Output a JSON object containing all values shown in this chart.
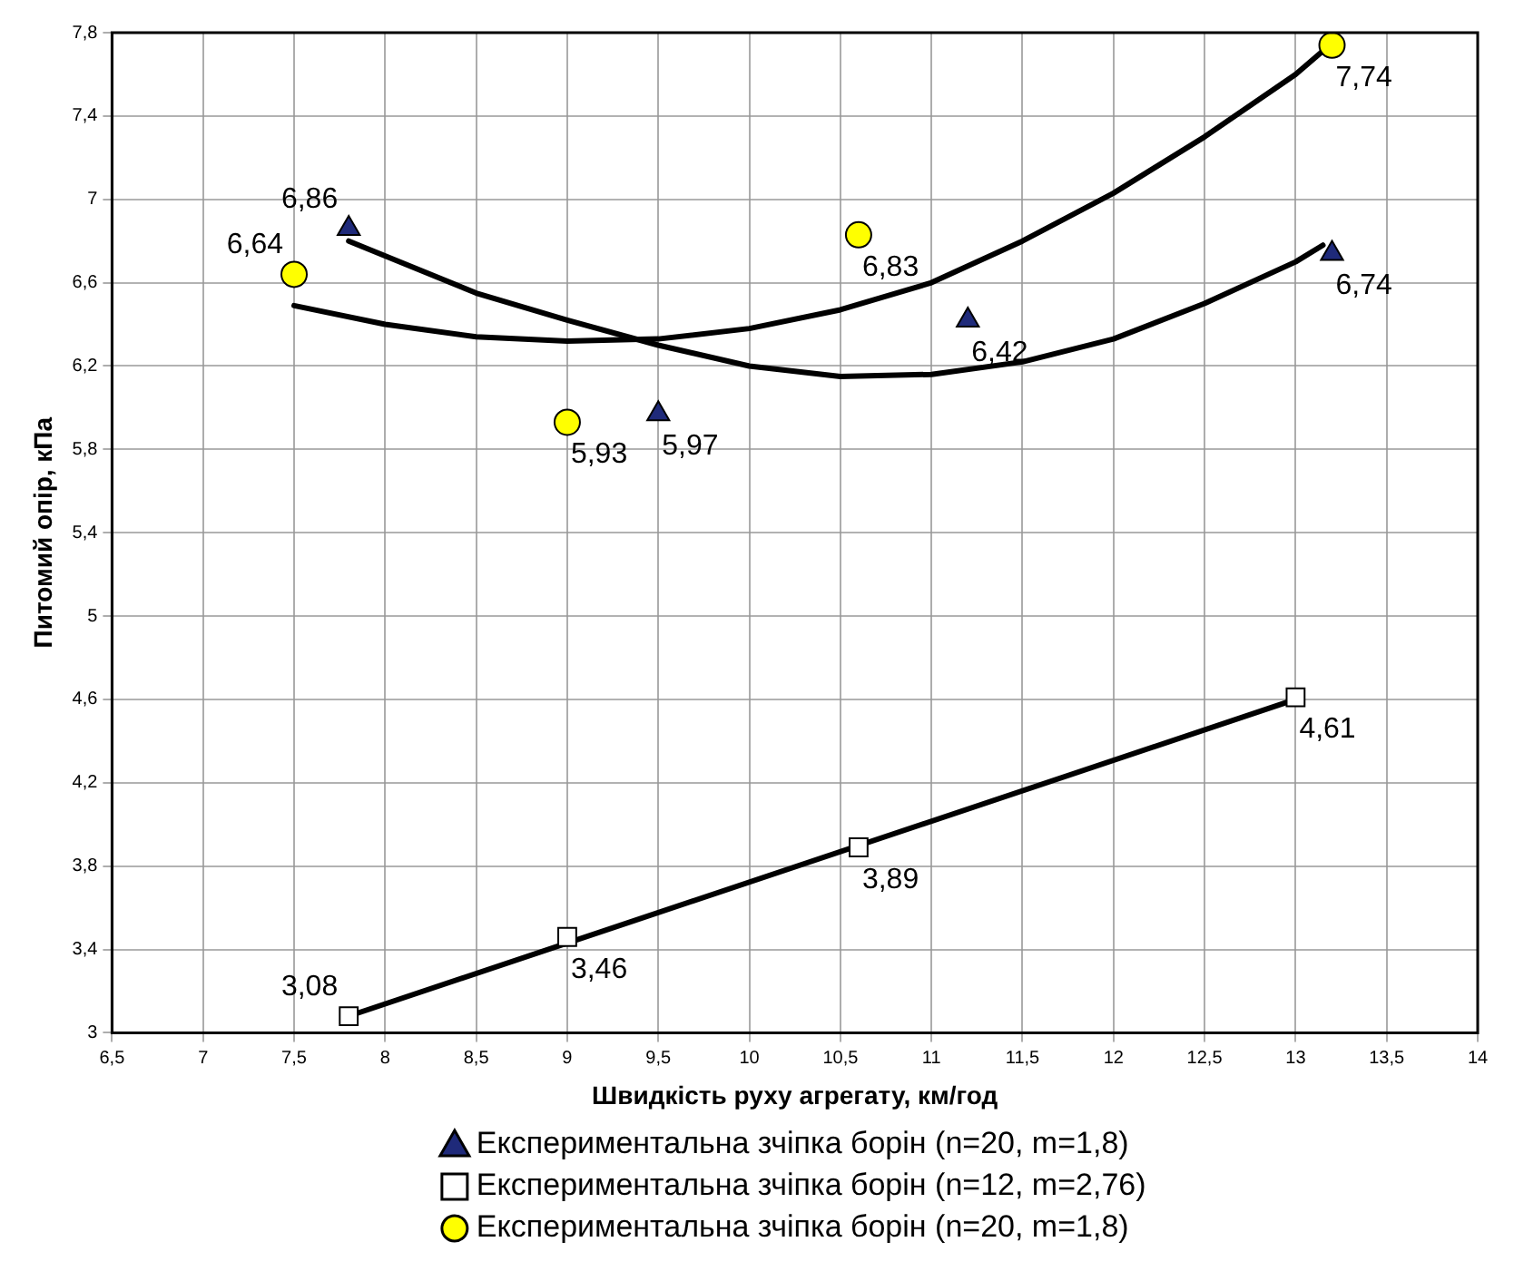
{
  "chart_data": {
    "type": "scatter",
    "xlabel": "Швидкість руху агрегату, км/год",
    "ylabel": "Питомий опір, кПа",
    "xlim": [
      6.5,
      14
    ],
    "xticks": [
      {
        "value": 6.5,
        "label": "6,5"
      },
      7,
      {
        "value": 7.5,
        "label": "7,5"
      },
      8,
      {
        "value": 8.5,
        "label": "8,5"
      },
      9,
      {
        "value": 9.5,
        "label": "9,5"
      },
      10,
      {
        "value": 10.5,
        "label": "10,5"
      },
      11,
      {
        "value": 11.5,
        "label": "11,5"
      },
      12,
      {
        "value": 12.5,
        "label": "12,5"
      },
      13,
      {
        "value": 13.5,
        "label": "13,5"
      },
      14
    ],
    "ylim": [
      3,
      7.8
    ],
    "yticks": [
      3,
      {
        "value": 3.4,
        "label": "3,4"
      },
      {
        "value": 3.8,
        "label": "3,8"
      },
      {
        "value": 4.2,
        "label": "4,2"
      },
      {
        "value": 4.6,
        "label": "4,6"
      },
      5,
      {
        "value": 5.4,
        "label": "5,4"
      },
      {
        "value": 5.8,
        "label": "5,8"
      },
      {
        "value": 6.2,
        "label": "6,2"
      },
      {
        "value": 6.6,
        "label": "6,6"
      },
      7,
      {
        "value": 7.4,
        "label": "7,4"
      },
      {
        "value": 7.8,
        "label": "7,8"
      }
    ],
    "grid": true,
    "legend": "bottom",
    "series": [
      {
        "name": "Експериментальна зчіпка борін (n=20, m=1,8)",
        "marker": "triangle",
        "color": "#1f2a7a",
        "x": [
          7.8,
          9.5,
          11.2,
          13.2
        ],
        "values": [
          6.86,
          5.97,
          6.42,
          6.74
        ],
        "value_labels": [
          "6,86",
          "5,97",
          "6,42",
          "6,74"
        ]
      },
      {
        "name": "Експериментальна зчіпка борін (n=12, m=2,76)",
        "marker": "square",
        "color": "#ffffff",
        "x": [
          7.8,
          9,
          10.6,
          13
        ],
        "values": [
          3.08,
          3.46,
          3.89,
          4.61
        ],
        "value_labels": [
          "3,08",
          "3,46",
          "3,89",
          "4,61"
        ]
      },
      {
        "name": "Експериментальна зчіпка борін (n=20, m=1,8)",
        "marker": "circle",
        "color": "#ffff00",
        "x": [
          7.5,
          9,
          10.6,
          13.2
        ],
        "values": [
          6.64,
          5.93,
          6.83,
          7.74
        ],
        "value_labels": [
          "6,64",
          "5,93",
          "6,83",
          "7,74"
        ]
      },
      {
        "type": "line",
        "marker": "none",
        "color": "#000000",
        "x": [
          7.8,
          8.5,
          9,
          9.5,
          10,
          10.5,
          11,
          11.5,
          12,
          12.5,
          13,
          13.15
        ],
        "values": [
          6.8,
          6.55,
          6.42,
          6.3,
          6.2,
          6.15,
          6.16,
          6.22,
          6.33,
          6.5,
          6.7,
          6.78
        ]
      },
      {
        "type": "line",
        "marker": "none",
        "color": "#000000",
        "x": [
          7.8,
          13
        ],
        "values": [
          3.08,
          4.6
        ]
      },
      {
        "type": "line",
        "marker": "none",
        "color": "#000000",
        "x": [
          7.5,
          8,
          8.5,
          9,
          9.5,
          10,
          10.5,
          11,
          11.5,
          12,
          12.5,
          13,
          13.2
        ],
        "values": [
          6.49,
          6.4,
          6.34,
          6.32,
          6.33,
          6.38,
          6.47,
          6.6,
          6.8,
          7.03,
          7.3,
          7.6,
          7.75
        ]
      }
    ]
  }
}
